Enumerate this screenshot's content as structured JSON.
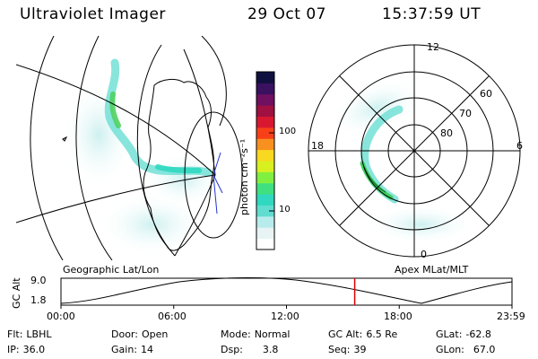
{
  "header": {
    "instrument": "Ultraviolet Imager",
    "date": "29 Oct 07",
    "time": "15:37:59 UT"
  },
  "left_map": {
    "label": "Geographic Lat/Lon"
  },
  "right_map": {
    "label": "Apex MLat/MLT",
    "lat_labels": [
      "60",
      "70",
      "80"
    ],
    "mlt_labels": [
      "12",
      "18",
      "6",
      "0"
    ]
  },
  "colorbar": {
    "unit": "photon cm⁻²s⁻¹",
    "ticks": [
      "100",
      "10"
    ],
    "colors": [
      "#ffffff",
      "#e8f4f4",
      "#b8ecec",
      "#60dcd0",
      "#30d8c0",
      "#40e080",
      "#80f040",
      "#d8f020",
      "#f8d820",
      "#f89020",
      "#f84018",
      "#d81830",
      "#a01040",
      "#701060",
      "#3a1060",
      "#101040"
    ]
  },
  "altitude_plot": {
    "ylabel": "GC Alt",
    "y_ticks": [
      "9.0",
      "1.8"
    ],
    "x_ticks": [
      "00:00",
      "06:00",
      "12:00",
      "18:00",
      "23:59"
    ],
    "current_time_marker_hours": 15.63,
    "marker_color": "#e00000"
  },
  "info": {
    "filter_label": "Flt:",
    "filter": "LBHL",
    "ip_label": "IP:",
    "ip": "36.0",
    "door_label": "Door:",
    "door": "Open",
    "gain_label": "Gain:",
    "gain": "14",
    "mode_label": "Mode:",
    "mode": "Normal",
    "dsp_label": "Dsp:",
    "dsp": "3.8",
    "gcalt_label": "GC Alt:",
    "gcalt": "6.5 Re",
    "seq_label": "Seq:",
    "seq": "39",
    "glat_label": "GLat:",
    "glat": "-62.8",
    "glon_label": "GLon:",
    "glon": "67.0"
  }
}
